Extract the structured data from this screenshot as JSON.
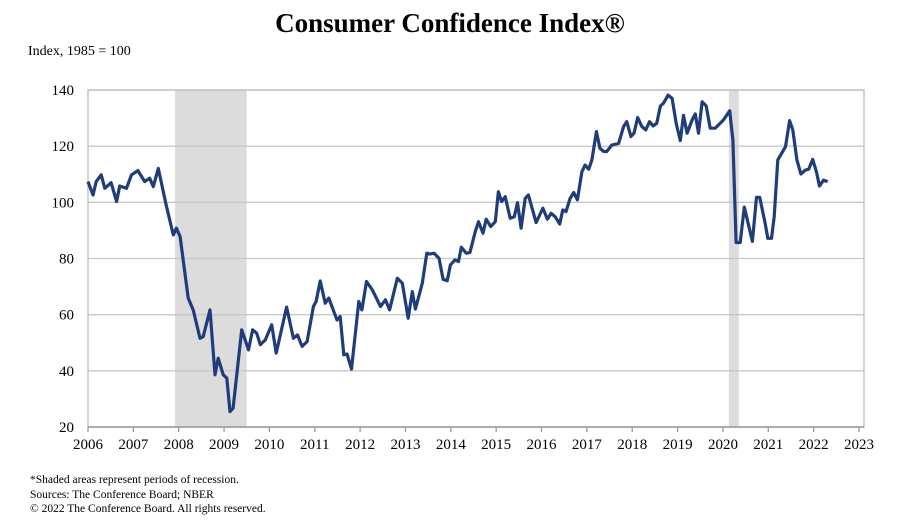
{
  "chart_data": {
    "type": "line",
    "title": "Consumer Confidence Index®",
    "ylabel": "Index, 1985 = 100",
    "xlabel": "",
    "xlim": [
      2006,
      2023
    ],
    "ylim": [
      20,
      140
    ],
    "xticks": [
      "2006",
      "2007",
      "2008",
      "2009",
      "2010",
      "2011",
      "2012",
      "2013",
      "2014",
      "2015",
      "2016",
      "2017",
      "2018",
      "2019",
      "2020",
      "2021",
      "2022",
      "2023"
    ],
    "yticks": [
      "20",
      "40",
      "60",
      "80",
      "100",
      "120",
      "140"
    ],
    "grid": true,
    "line_color": "#1f3d7a",
    "recession_color": "#dcdcdc",
    "recessions": [
      [
        2007.92,
        2009.5
      ],
      [
        2020.13,
        2020.35
      ]
    ],
    "series": [
      {
        "x": [
          2006.0,
          2006.11,
          2006.18,
          2006.29,
          2006.37,
          2006.51,
          2006.63,
          2006.7,
          2006.85,
          2006.96,
          2007.1,
          2007.25,
          2007.36,
          2007.44,
          2007.55,
          2007.73,
          2007.88,
          2007.95,
          2008.03,
          2008.21,
          2008.32,
          2008.47,
          2008.54,
          2008.69,
          2008.8,
          2008.87,
          2008.98,
          2009.06,
          2009.13,
          2009.2,
          2009.39,
          2009.54,
          2009.63,
          2009.72,
          2009.8,
          2009.91,
          2010.05,
          2010.15,
          2010.38,
          2010.53,
          2010.62,
          2010.72,
          2010.83,
          2010.97,
          2011.03,
          2011.12,
          2011.23,
          2011.31,
          2011.49,
          2011.56,
          2011.64,
          2011.71,
          2011.81,
          2011.97,
          2012.04,
          2012.14,
          2012.27,
          2012.45,
          2012.56,
          2012.65,
          2012.82,
          2012.93,
          2013.06,
          2013.15,
          2013.22,
          2013.37,
          2013.47,
          2013.55,
          2013.63,
          2013.74,
          2013.83,
          2013.92,
          2013.99,
          2014.09,
          2014.17,
          2014.23,
          2014.34,
          2014.42,
          2014.54,
          2014.61,
          2014.71,
          2014.78,
          2014.88,
          2014.98,
          2015.05,
          2015.12,
          2015.2,
          2015.31,
          2015.4,
          2015.47,
          2015.55,
          2015.64,
          2015.71,
          2015.88,
          2015.96,
          2016.03,
          2016.13,
          2016.21,
          2016.3,
          2016.4,
          2016.47,
          2016.54,
          2016.63,
          2016.71,
          2016.79,
          2016.89,
          2016.96,
          2017.04,
          2017.11,
          2017.21,
          2017.29,
          2017.37,
          2017.44,
          2017.55,
          2017.7,
          2017.81,
          2017.88,
          2017.97,
          2018.04,
          2018.12,
          2018.21,
          2018.3,
          2018.38,
          2018.46,
          2018.54,
          2018.62,
          2018.69,
          2018.79,
          2018.88,
          2018.97,
          2019.06,
          2019.13,
          2019.21,
          2019.32,
          2019.39,
          2019.46,
          2019.54,
          2019.63,
          2019.72,
          2019.83,
          2020.01,
          2020.15,
          2020.22,
          2020.29,
          2020.38,
          2020.47,
          2020.65,
          2020.74,
          2020.81,
          2020.93,
          2020.99,
          2021.07,
          2021.13,
          2021.21,
          2021.38,
          2021.47,
          2021.54,
          2021.63,
          2021.72,
          2021.82,
          2021.89,
          2021.98,
          2022.06,
          2022.13,
          2022.22,
          2022.31
        ],
        "y": [
          107.4,
          102.6,
          107.4,
          109.8,
          105,
          107,
          100.3,
          105.8,
          105,
          109.8,
          111.3,
          107.4,
          108.6,
          105.6,
          112.1,
          98.5,
          88.4,
          90.8,
          87.8,
          65.9,
          61.7,
          51.6,
          52.2,
          61.7,
          38.6,
          44.5,
          38.6,
          37.4,
          25.5,
          26.7,
          54.6,
          47.5,
          54.6,
          53.4,
          49.3,
          51,
          56.4,
          46.3,
          62.7,
          51.6,
          52.8,
          48.7,
          50.4,
          62.9,
          64.7,
          72,
          64.1,
          65.9,
          58.1,
          59.3,
          45.7,
          46,
          40.6,
          64.7,
          61.7,
          71.8,
          68.8,
          62.9,
          65.3,
          61.7,
          73,
          71.2,
          58.7,
          68.2,
          62,
          71.2,
          81.9,
          81.6,
          81.9,
          80.1,
          72.6,
          72.1,
          77.7,
          79.5,
          78.9,
          84,
          81.9,
          82.1,
          89.6,
          93.1,
          89,
          94,
          91.4,
          93.1,
          103.8,
          100.3,
          102,
          94.3,
          94.9,
          99.9,
          90.8,
          101.4,
          102.6,
          92.8,
          95.5,
          97.9,
          94,
          96.1,
          94.9,
          92.3,
          97.3,
          96.7,
          101.4,
          103.5,
          100.9,
          110.9,
          113.3,
          111.8,
          115.1,
          125.2,
          119.2,
          118.1,
          118.1,
          120.4,
          121,
          127,
          128.7,
          123.4,
          124.6,
          130.2,
          127,
          125.8,
          128.7,
          127.2,
          128.1,
          134.3,
          135.3,
          138.2,
          137,
          128.1,
          122,
          131,
          124.6,
          129.3,
          131.5,
          124.6,
          135.8,
          134.3,
          126.4,
          126.4,
          129.3,
          132.6,
          122.2,
          85.7,
          85.7,
          98.3,
          86.1,
          101.8,
          101.8,
          92.6,
          87.2,
          87.2,
          94.9,
          115.1,
          119.8,
          129.1,
          125.8,
          115.1,
          110.1,
          111.5,
          111.8,
          115.3,
          110.9,
          105.8,
          107.9,
          107.4
        ]
      }
    ]
  },
  "footnotes": [
    "*Shaded areas represent periods of recession.",
    "Sources: The Conference Board; NBER",
    "© 2022 The Conference Board. All rights reserved."
  ]
}
